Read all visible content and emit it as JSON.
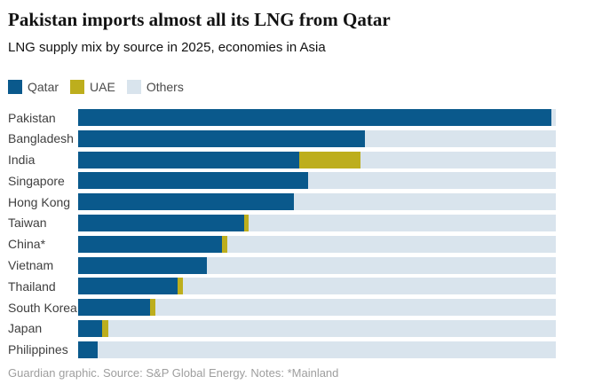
{
  "header": {
    "title": "Pakistan imports almost all its LNG from Qatar",
    "subtitle": "LNG supply mix by source in 2025, economies in Asia"
  },
  "legend": {
    "items": [
      {
        "label": "Qatar",
        "color": "#0a598c"
      },
      {
        "label": "UAE",
        "color": "#bdae1d"
      },
      {
        "label": "Others",
        "color": "#d9e4ed"
      }
    ]
  },
  "chart_data": {
    "type": "bar",
    "orientation": "horizontal",
    "stacked": true,
    "unit": "percent of LNG supply",
    "xlim": [
      0,
      100
    ],
    "grid": false,
    "legend_position": "top-left",
    "title": "Pakistan imports almost all its LNG from Qatar",
    "subtitle": "LNG supply mix by source in 2025, economies in Asia",
    "categories": [
      "Pakistan",
      "Bangladesh",
      "India",
      "Singapore",
      "Hong Kong",
      "Taiwan",
      "China*",
      "Vietnam",
      "Thailand",
      "South Korea",
      "Japan",
      "Philippines"
    ],
    "series": [
      {
        "name": "Qatar",
        "color": "#0a598c",
        "values": [
          99.1,
          60.0,
          46.3,
          48.1,
          45.1,
          34.8,
          30.1,
          27.0,
          20.8,
          15.1,
          5.0,
          4.1
        ]
      },
      {
        "name": "UAE",
        "color": "#bdae1d",
        "values": [
          0,
          0,
          12.9,
          0,
          0,
          0.9,
          1.2,
          0,
          1.1,
          1.1,
          1.4,
          0
        ]
      },
      {
        "name": "Others",
        "color": "#d9e4ed",
        "values": [
          0.9,
          40.0,
          40.8,
          51.9,
          54.9,
          64.3,
          68.7,
          73.0,
          78.1,
          83.8,
          93.6,
          95.9
        ]
      }
    ]
  },
  "footer": {
    "credit": "Guardian graphic. Source: S&P Global Energy. Notes: *Mainland"
  }
}
